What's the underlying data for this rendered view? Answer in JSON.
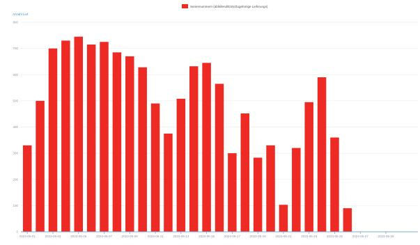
{
  "chart_data": {
    "type": "bar",
    "legend": {
      "label": "Seriennummern (abfallend/ESN/Zugehörige Lieferungs)",
      "color": "#ee2a24",
      "placement": "top-center"
    },
    "ylabel": "Anzahl Lief.",
    "ylim": [
      0,
      800
    ],
    "yticks": [
      0,
      100,
      200,
      300,
      400,
      500,
      600,
      700,
      800
    ],
    "categories": [
      "2023-05-01",
      "2023-05-02",
      "2023-05-03",
      "2023-05-04",
      "2023-05-05",
      "2023-05-06",
      "2023-05-07",
      "2023-05-08",
      "2023-05-09",
      "2023-05-10",
      "2023-05-11",
      "2023-05-12",
      "2023-05-13",
      "2023-05-14",
      "2023-05-15",
      "2023-05-16",
      "2023-05-17",
      "2023-05-18",
      "2023-05-19",
      "2023-05-20",
      "2023-05-21",
      "2023-05-22",
      "2023-05-23",
      "2023-05-24",
      "2023-05-25",
      "2023-05-26",
      "2023-05-27",
      "2023-05-28",
      "2023-05-29",
      "2023-05-30",
      "2023-05-31"
    ],
    "values": [
      330,
      500,
      700,
      730,
      745,
      715,
      725,
      685,
      670,
      628,
      490,
      375,
      508,
      632,
      645,
      565,
      300,
      452,
      283,
      330,
      103,
      320,
      495,
      590,
      360,
      90,
      0,
      0,
      0,
      0,
      0
    ],
    "xtick_labels": [
      "2023-05-01",
      "2023-05-03",
      "2023-05-05",
      "2023-05-07",
      "2023-05-09",
      "2023-05-11",
      "2023-05-13",
      "2023-05-15",
      "2023-05-17",
      "2023-05-19",
      "2023-05-21",
      "2023-05-23",
      "2023-05-25",
      "2023-05-27",
      "2023-05-29"
    ],
    "bar_color": "#ee2a24",
    "grid": true
  }
}
